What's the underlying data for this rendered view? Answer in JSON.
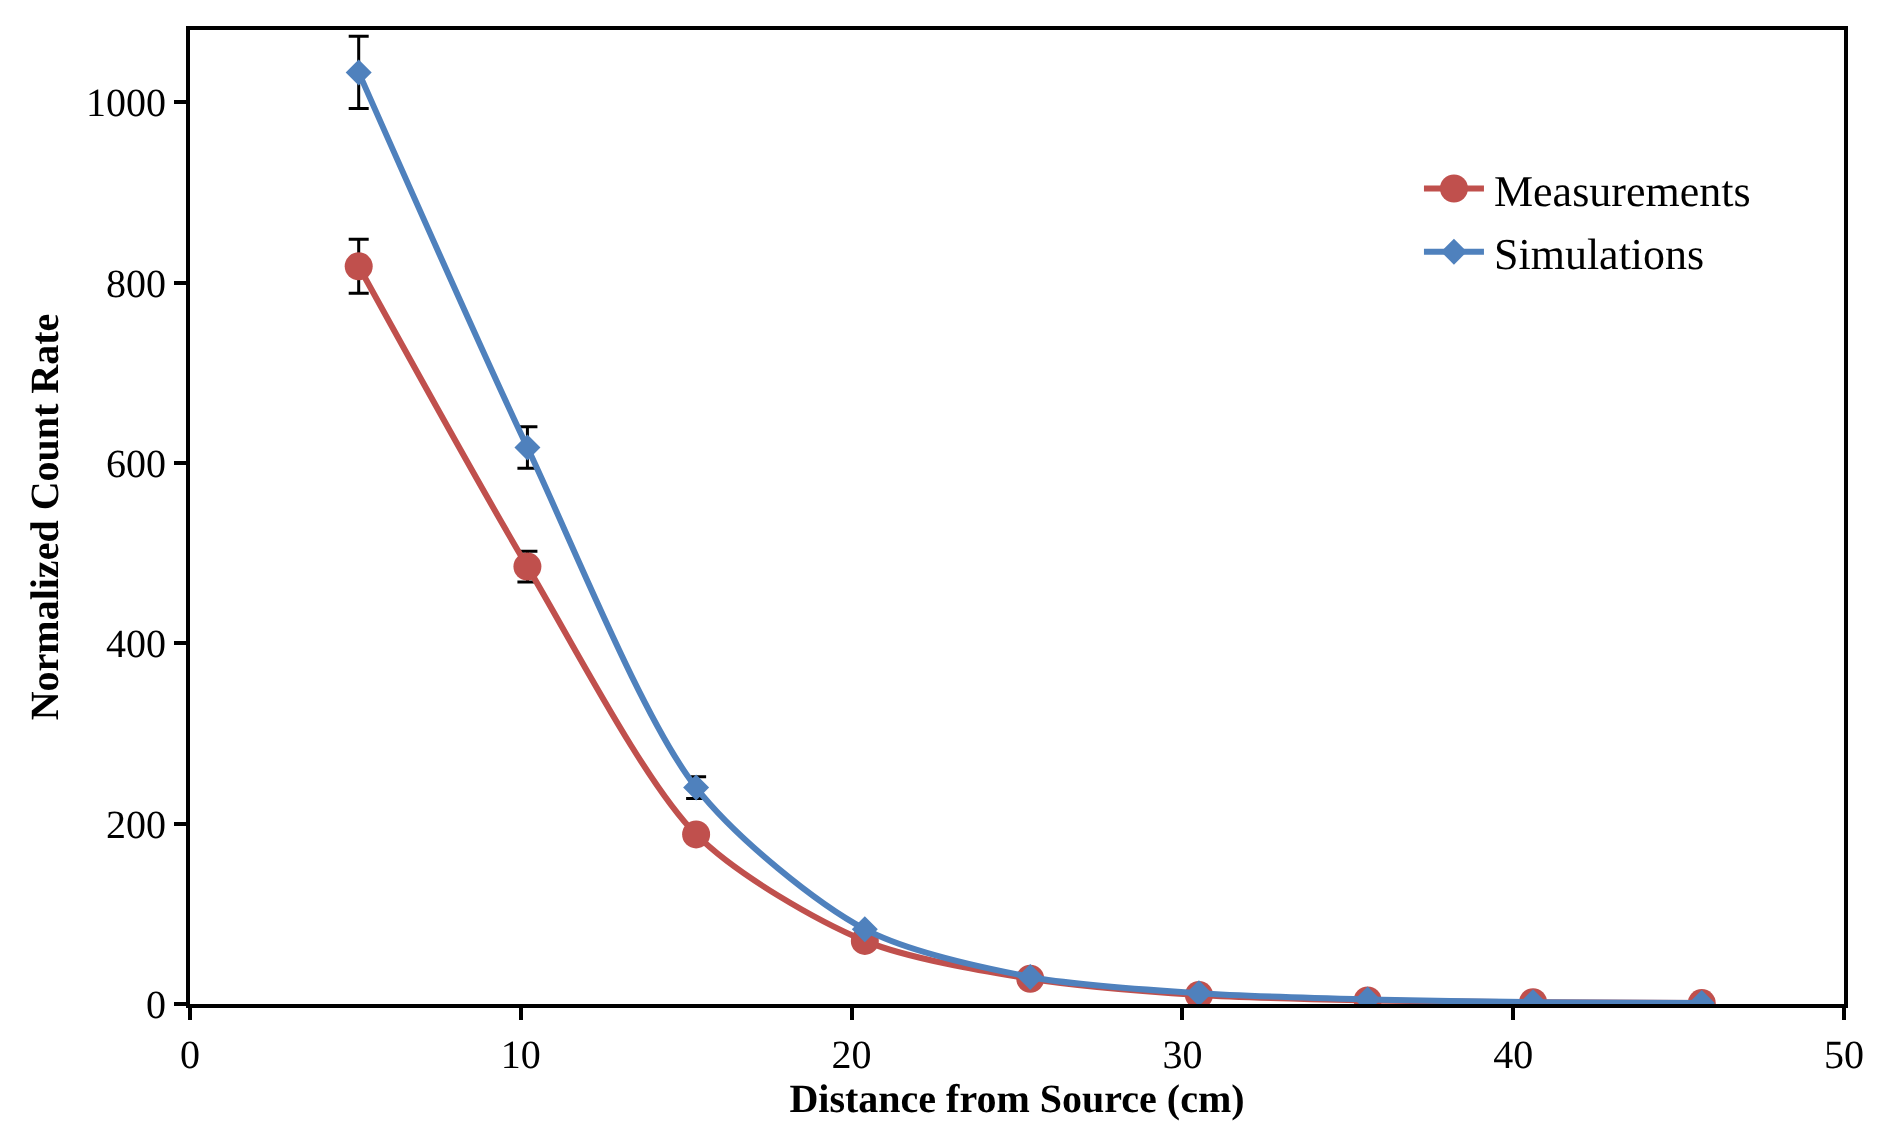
{
  "chart_data": {
    "type": "line",
    "xlabel": "Distance from Source (cm)",
    "ylabel": "Normalized Count Rate",
    "x": [
      5.1,
      10.2,
      15.3,
      20.4,
      25.4,
      30.5,
      35.6,
      40.6,
      45.7
    ],
    "series": [
      {
        "name": "Measurements",
        "color": "#c0504d",
        "marker": "circle",
        "values": [
          818,
          485,
          188,
          70,
          28,
          10,
          4,
          2,
          1
        ],
        "errors": [
          30,
          17,
          null,
          null,
          null,
          null,
          null,
          null,
          null
        ]
      },
      {
        "name": "Simulations",
        "color": "#4f81bd",
        "marker": "diamond",
        "values": [
          1033,
          617,
          240,
          83,
          30,
          12,
          5,
          2,
          1
        ],
        "errors": [
          40,
          23,
          12,
          null,
          null,
          null,
          null,
          null,
          null
        ]
      }
    ],
    "xlim": [
      0,
      50
    ],
    "xticks": [
      0,
      10,
      20,
      30,
      40,
      50
    ],
    "ylim": [
      0,
      1080
    ],
    "yticks": [
      0,
      200,
      400,
      600,
      800,
      1000
    ],
    "legend": "top right",
    "line_style": "solid"
  }
}
